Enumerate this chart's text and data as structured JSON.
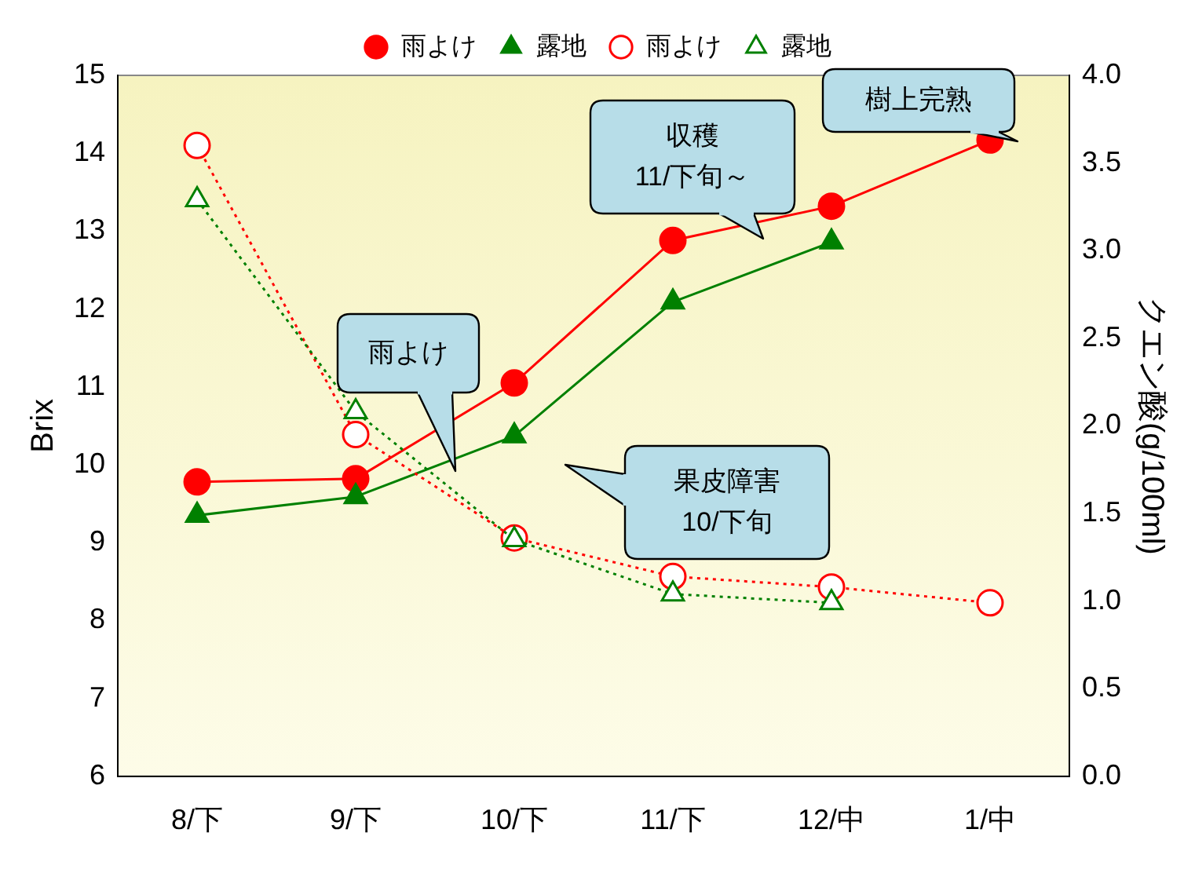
{
  "chart_data": {
    "type": "line",
    "categories": [
      "8/下",
      "9/下",
      "10/下",
      "11/下",
      "12/中",
      "1/中"
    ],
    "ylabel": "Brix",
    "y2label": "クエン酸(g/100ml)",
    "ylim": [
      6,
      15
    ],
    "yticks": [
      6,
      7,
      8,
      9,
      10,
      11,
      12,
      13,
      14,
      15
    ],
    "y2lim": [
      0,
      4
    ],
    "y2ticks": [
      {
        "value": 0,
        "label": "0.0"
      },
      {
        "value": 0.5,
        "label": "0.5"
      },
      {
        "value": 1,
        "label": "1.0"
      },
      {
        "value": 1.5,
        "label": "1.5"
      },
      {
        "value": 2,
        "label": "2.0"
      },
      {
        "value": 2.5,
        "label": "2.5"
      },
      {
        "value": 3,
        "label": "3.0"
      },
      {
        "value": 3.5,
        "label": "3.5"
      },
      {
        "value": 4,
        "label": "4.0"
      }
    ],
    "grid": false,
    "legend": "top",
    "series": [
      {
        "name": "雨よけ",
        "color": "#ff0000",
        "marker": "circle",
        "line_style": "solid",
        "values": [
          9.78,
          9.82,
          11.05,
          12.88,
          13.32,
          14.17
        ]
      },
      {
        "name": "露地",
        "color": "#008000",
        "marker": "triangle",
        "line_style": "solid",
        "values": [
          9.35,
          9.59,
          10.37,
          12.09,
          12.86,
          null
        ]
      },
      {
        "name": "雨よけ",
        "color": "#ff0000",
        "marker": "circle",
        "line_style": "dotted",
        "axis": "y2",
        "values": [
          3.6,
          1.95,
          1.36,
          1.14,
          1.08,
          0.99
        ]
      },
      {
        "name": "露地",
        "color": "#008000",
        "marker": "triangle",
        "line_style": "dotted",
        "axis": "y2",
        "values": [
          3.29,
          2.08,
          1.35,
          1.04,
          0.99,
          null
        ]
      }
    ],
    "annotations": [
      "雨よけ",
      "収穫\n11/下旬～",
      "樹上完熟",
      "果皮障害\n10/下旬"
    ]
  }
}
